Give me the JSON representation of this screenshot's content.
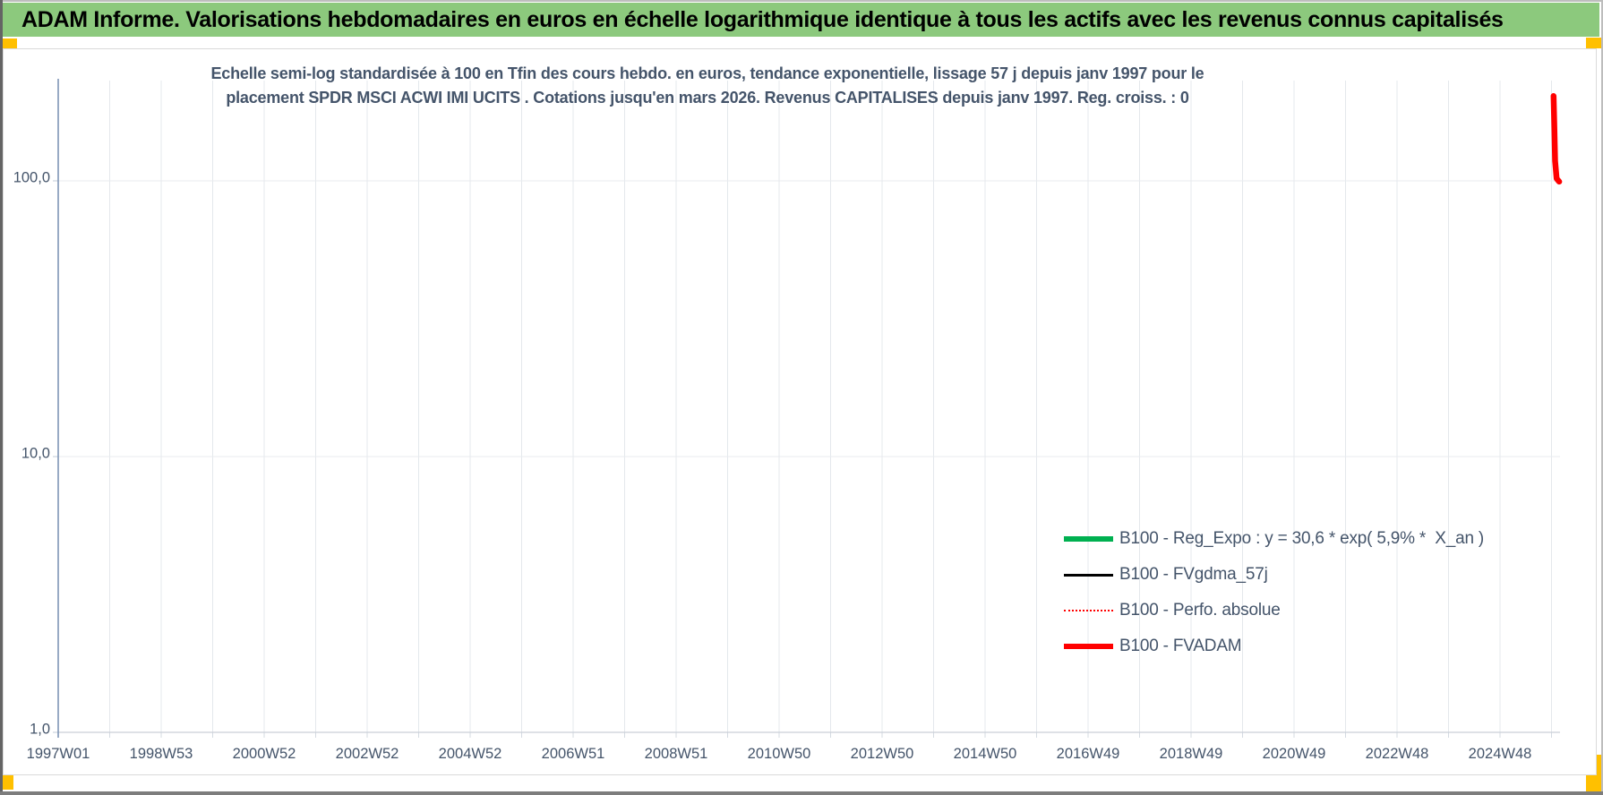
{
  "page": {
    "header": {
      "title": "ADAM Informe. Valorisations hebdomadaires en euros en échelle logarithmique identique à tous les actifs avec les revenus connus capitalisés"
    },
    "accents": {
      "header_bg": "#8CC97D",
      "corner_marker_color": "#FFC000",
      "text_color": "#44546A"
    }
  },
  "chart_data": {
    "type": "line",
    "x_scale": "time-weekly",
    "y_scale": "log10",
    "title_line1": "Echelle semi-log standardisée à 100 en Tfin des cours hebdo. en euros, tendance exponentielle, lissage 57 j depuis janv 1997 pour le",
    "title_line2": "placement SPDR MSCI ACWI IMI UCITS . Cotations jusqu'en mars 2026. Revenus CAPITALISES depuis janv 1997. Reg. croiss. : 0",
    "y_axis": {
      "scale": "log",
      "min": 1,
      "max": 234,
      "ticks": [
        {
          "label": "100,0",
          "value": 100
        },
        {
          "label": "10,0",
          "value": 10
        },
        {
          "label": "1,0",
          "value": 1
        }
      ]
    },
    "x_axis": {
      "start_year": 1997,
      "end_year": 2026.2,
      "gridline_step_years": 1,
      "years_per_label": 2,
      "tick_labels": [
        "1997W01",
        "1998W53",
        "2000W52",
        "2002W52",
        "2004W52",
        "2006W51",
        "2008W51",
        "2010W50",
        "2012W50",
        "2014W50",
        "2016W49",
        "2018W49",
        "2020W49",
        "2022W48",
        "2024W48"
      ]
    },
    "legend": {
      "position": "inside-right"
    },
    "series": [
      {
        "name": "B100 - Reg_Expo : y = 30,6 * exp( 5,9% *  X_an )",
        "color": "#00B050",
        "style": "solid",
        "line_width": 6,
        "points": []
      },
      {
        "name": "B100 - FVgdma_57j",
        "color": "#000000",
        "style": "solid",
        "line_width": 3.5,
        "points": []
      },
      {
        "name": "B100 - Perfo. absolue",
        "color": "#FF0000",
        "style": "dotted",
        "line_width": 2.5,
        "points": []
      },
      {
        "name": "B100 - FVADAM",
        "color": "#FF0000",
        "style": "solid",
        "line_width": 6.5,
        "points": [
          [
            2026.04,
            203
          ],
          [
            2026.055,
            155
          ],
          [
            2026.07,
            118
          ],
          [
            2026.1,
            102
          ],
          [
            2026.15,
            99.3
          ]
        ]
      }
    ],
    "note": "Seule la série B100 - FVADAM est visible : court segment quasi vertical à l'extrême droite, chutant d'environ 200 vers 100."
  }
}
